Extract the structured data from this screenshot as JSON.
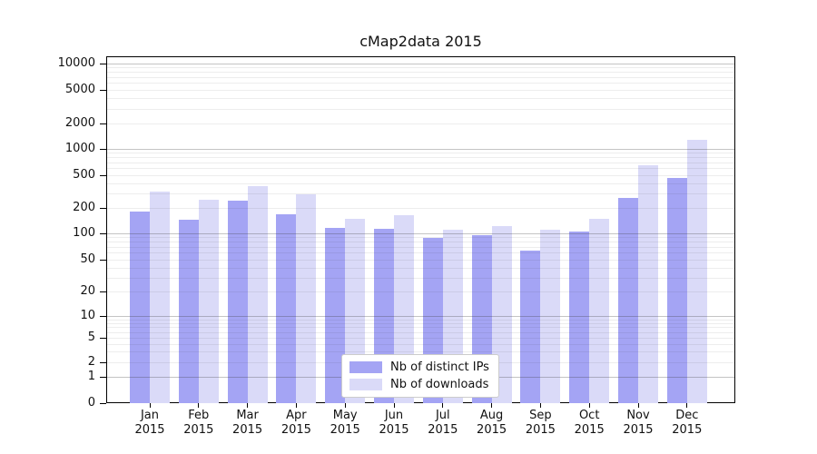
{
  "chart_data": {
    "type": "bar",
    "title": "cMap2data 2015",
    "categories": [
      "Jan",
      "Feb",
      "Mar",
      "Apr",
      "May",
      "Jun",
      "Jul",
      "Aug",
      "Sep",
      "Oct",
      "Nov",
      "Dec"
    ],
    "x_tick_second_line": "2015",
    "series": [
      {
        "name": "Nb of distinct IPs",
        "color": "#a4a4f4",
        "values": [
          182,
          145,
          245,
          168,
          116,
          113,
          89,
          95,
          64,
          105,
          265,
          458
        ]
      },
      {
        "name": "Nb of downloads",
        "color": "#dadaf8",
        "values": [
          316,
          250,
          368,
          292,
          148,
          164,
          110,
          122,
          110,
          150,
          650,
          1280
        ]
      }
    ],
    "yscale": "symlog",
    "y_ticks": [
      0,
      1,
      2,
      5,
      10,
      20,
      50,
      100,
      200,
      500,
      1000,
      2000,
      5000,
      10000
    ],
    "ylim": [
      0,
      10000
    ],
    "xlabel": "",
    "ylabel": "",
    "grid": true,
    "legend_position": "lower center"
  }
}
